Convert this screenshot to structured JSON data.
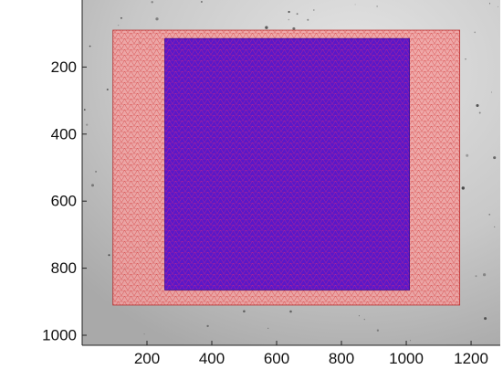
{
  "figure": {
    "background_image": "grayscale-specimen-photo",
    "colors": {
      "outer_mesh_fill": "#f2a0a0",
      "outer_mesh_line": "#d23a3a",
      "inner_mesh_fill": "#5a18c8",
      "inner_mesh_line": "#ff2a6a",
      "axis": "#222222",
      "image_bg": "#c9c9c9"
    }
  },
  "chart_data": {
    "type": "heatmap",
    "title": "",
    "xlabel": "",
    "ylabel": "",
    "x_range": [
      0,
      1290
    ],
    "y_range": [
      1030,
      0
    ],
    "y_axis_reversed": true,
    "x_ticks": [
      200,
      400,
      600,
      800,
      1000,
      1200
    ],
    "x_tick_labels": [
      "200",
      "400",
      "600",
      "800",
      "1000",
      "1200"
    ],
    "y_ticks": [
      200,
      400,
      600,
      800,
      1000
    ],
    "y_tick_labels": [
      "200",
      "400",
      "600",
      "800",
      "1000"
    ],
    "regions": [
      {
        "name": "outer-mesh",
        "x": [
          95,
          1165
        ],
        "y": [
          90,
          910
        ]
      },
      {
        "name": "inner-mesh",
        "x": [
          255,
          1010
        ],
        "y": [
          115,
          865
        ]
      }
    ]
  }
}
